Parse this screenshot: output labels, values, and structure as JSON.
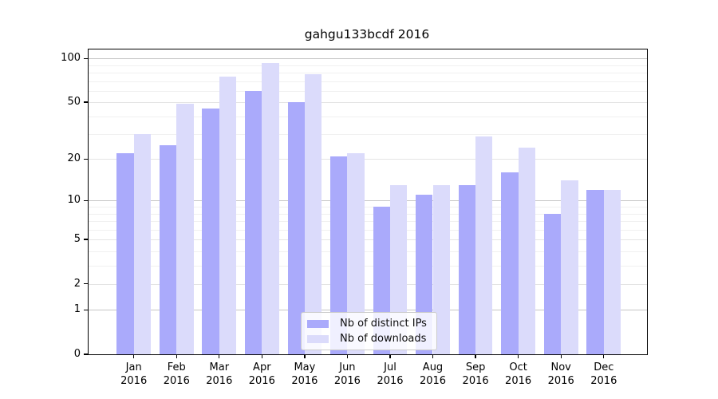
{
  "chart_data": {
    "type": "bar",
    "title": "gahgu133bcdf 2016",
    "categories": [
      "Jan",
      "Feb",
      "Mar",
      "Apr",
      "May",
      "Jun",
      "Jul",
      "Aug",
      "Sep",
      "Oct",
      "Nov",
      "Dec"
    ],
    "x_tick_second_line": "2016",
    "series": [
      {
        "name": "Nb of distinct IPs",
        "color": "#aaaafb",
        "values": [
          22,
          25,
          45,
          60,
          50,
          21,
          9,
          11,
          13,
          16,
          8,
          12
        ]
      },
      {
        "name": "Nb of downloads",
        "color": "#dbdbfb",
        "values": [
          30,
          49,
          75,
          93,
          78,
          22,
          13,
          13,
          29,
          24,
          14,
          12
        ]
      }
    ],
    "yscale": "log1p",
    "ylim": [
      0,
      116
    ],
    "y_ticks": [
      100,
      50,
      20,
      10,
      5,
      2,
      1,
      0
    ],
    "y_minor_gridlines": [
      90,
      80,
      70,
      60,
      40,
      30,
      9,
      8,
      7,
      6,
      4,
      3
    ],
    "grid": true,
    "legend_position": "lower center",
    "colors": {
      "background": "#ffffff",
      "axis": "#000000",
      "text": "#000000",
      "grid_decade": "#c6c6c6",
      "grid_labeled": "#e4e4e4",
      "grid_minor": "#f0f0f0",
      "legend_border": "#cccccc"
    }
  }
}
